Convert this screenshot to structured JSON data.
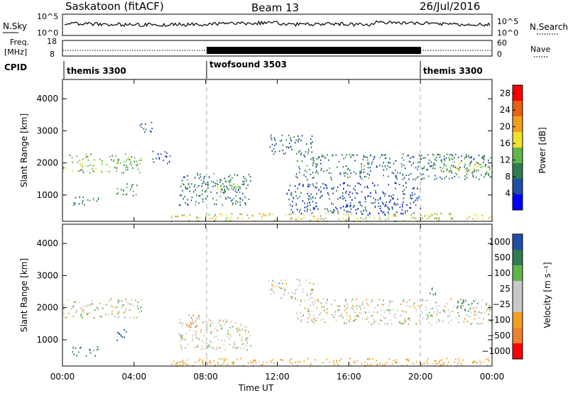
{
  "header": {
    "title": "Saskatoon (fitACF)",
    "beam": "Beam 13",
    "date": "26/Jul/2016"
  },
  "nsky_panel": {
    "left_label": "N.Sky",
    "left_top_tick": "10^5",
    "left_bottom_tick": "10^0",
    "right_top_tick": "10^5",
    "right_bottom_tick": "10^0",
    "right_label": "N.Search"
  },
  "freq_panel": {
    "left_label_1": "Freq.",
    "left_label_2": "[MHz]",
    "left_top_tick": "18",
    "left_bottom_tick": "8",
    "right_top_tick": "60",
    "right_bottom_tick": "0",
    "right_label": "Nave"
  },
  "cpid": {
    "label": "CPID",
    "modes": [
      {
        "name": "themis 3300",
        "start": "00:00",
        "end": "08:00"
      },
      {
        "name": "twofsound 3503",
        "start": "08:00",
        "end": "20:00"
      },
      {
        "name": "themis 3300",
        "start": "20:00",
        "end": "00:00"
      }
    ]
  },
  "colors": {
    "power": [
      "#0000ff",
      "#1e4ea6",
      "#2e7d4f",
      "#5fb64a",
      "#f0e030",
      "#f0a020",
      "#e86010",
      "#ff0000"
    ],
    "velocity": [
      "#1e4ea6",
      "#2e7d4f",
      "#5fb64a",
      "#c8c8c8",
      "#c8c8c8",
      "#f0a020",
      "#f08030",
      "#ff0000"
    ],
    "ground_scatter": "#c8c8c8"
  },
  "chart_data": [
    {
      "type": "heatmap",
      "panel": "power",
      "ylabel": "Slant Range [km]",
      "xlabel": "Time UT",
      "x_ticks": [
        "00:00",
        "04:00",
        "08:00",
        "12:00",
        "16:00",
        "20:00",
        "00:00"
      ],
      "y_ticks": [
        1000,
        2000,
        3000,
        4000
      ],
      "ylim": [
        180,
        4600
      ],
      "colorbar_label": "Power [dB]",
      "colorbar_ticks": [
        4,
        8,
        12,
        16,
        20,
        24,
        28
      ],
      "colorbar_range": [
        0,
        30
      ],
      "regions": [
        {
          "t": [
            0.0,
            4.4
          ],
          "r": [
            1700,
            2300
          ],
          "value": 14
        },
        {
          "t": [
            0.5,
            2.0
          ],
          "r": [
            700,
            1000
          ],
          "value": 10
        },
        {
          "t": [
            3.0,
            4.2
          ],
          "r": [
            1000,
            1400
          ],
          "value": 12
        },
        {
          "t": [
            4.3,
            5.0
          ],
          "r": [
            2900,
            3300
          ],
          "value": 7
        },
        {
          "t": [
            5.0,
            6.0
          ],
          "r": [
            2000,
            2400
          ],
          "value": 6
        },
        {
          "t": [
            6.5,
            10.5
          ],
          "r": [
            700,
            1700
          ],
          "value": 9
        },
        {
          "t": [
            8.5,
            10.0
          ],
          "r": [
            1100,
            1500
          ],
          "value": 14
        },
        {
          "t": [
            6.0,
            24.0
          ],
          "r": [
            200,
            450
          ],
          "value": 18
        },
        {
          "t": [
            11.5,
            14.0
          ],
          "r": [
            2300,
            2900
          ],
          "value": 8
        },
        {
          "t": [
            13.0,
            24.0
          ],
          "r": [
            1500,
            2300
          ],
          "value": 9
        },
        {
          "t": [
            12.5,
            20.0
          ],
          "r": [
            400,
            1400
          ],
          "value": 6
        },
        {
          "t": [
            21.0,
            24.0
          ],
          "r": [
            1700,
            2100
          ],
          "value": 16
        }
      ]
    },
    {
      "type": "heatmap",
      "panel": "velocity",
      "ylabel": "Slant Range [km]",
      "xlabel": "Time UT",
      "x_ticks": [
        "00:00",
        "04:00",
        "08:00",
        "12:00",
        "16:00",
        "20:00",
        "00:00"
      ],
      "y_ticks": [
        1000,
        2000,
        3000,
        4000
      ],
      "ylim": [
        180,
        4600
      ],
      "colorbar_label": "Velocity [m s⁻¹]",
      "colorbar_ticks": [
        "1000",
        "500",
        "100",
        "25",
        "−25",
        "−100",
        "−500",
        "−1000"
      ],
      "regions": [
        {
          "t": [
            0.0,
            4.4
          ],
          "r": [
            1700,
            2300
          ],
          "value": 0
        },
        {
          "t": [
            0.5,
            2.0
          ],
          "r": [
            500,
            800
          ],
          "value": 120
        },
        {
          "t": [
            3.0,
            3.6
          ],
          "r": [
            1000,
            1400
          ],
          "value": 600
        },
        {
          "t": [
            6.5,
            10.5
          ],
          "r": [
            700,
            1700
          ],
          "value": 0
        },
        {
          "t": [
            7.0,
            7.6
          ],
          "r": [
            1300,
            1800
          ],
          "value": -150
        },
        {
          "t": [
            6.0,
            24.0
          ],
          "r": [
            200,
            450
          ],
          "value": -60
        },
        {
          "t": [
            11.5,
            14.0
          ],
          "r": [
            2300,
            2900
          ],
          "value": 0
        },
        {
          "t": [
            13.0,
            24.0
          ],
          "r": [
            1500,
            2300
          ],
          "value": 0
        },
        {
          "t": [
            20.5,
            21.0
          ],
          "r": [
            2400,
            2700
          ],
          "value": 150
        },
        {
          "t": [
            22.0,
            23.0
          ],
          "r": [
            1900,
            2300
          ],
          "value": 150
        }
      ]
    }
  ]
}
